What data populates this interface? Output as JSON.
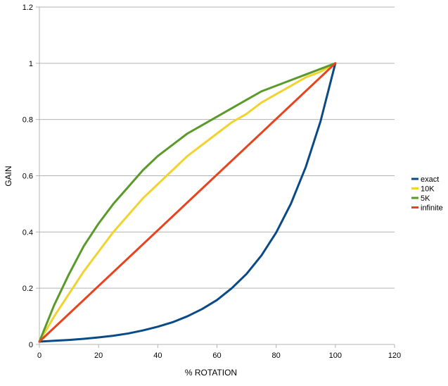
{
  "chart_data": {
    "type": "line",
    "title": "",
    "xlabel": "% ROTATION",
    "ylabel": "GAIN",
    "xlim": [
      0,
      120
    ],
    "ylim": [
      0,
      1.2
    ],
    "xticks": [
      0,
      20,
      40,
      60,
      80,
      100,
      120
    ],
    "yticks": [
      0,
      0.2,
      0.4,
      0.6,
      0.8,
      1,
      1.2
    ],
    "grid": "horizontal",
    "legend": "right",
    "series": [
      {
        "name": "exact",
        "color": "#0a4a86",
        "x": [
          0,
          5,
          10,
          15,
          20,
          25,
          30,
          35,
          40,
          45,
          50,
          55,
          60,
          65,
          70,
          75,
          80,
          85,
          90,
          95,
          100
        ],
        "y": [
          0.01,
          0.013,
          0.016,
          0.02,
          0.025,
          0.031,
          0.039,
          0.05,
          0.063,
          0.079,
          0.1,
          0.126,
          0.158,
          0.2,
          0.251,
          0.316,
          0.398,
          0.501,
          0.631,
          0.794,
          1.0
        ]
      },
      {
        "name": "10K",
        "color": "#f2d22e",
        "x": [
          0,
          5,
          10,
          15,
          20,
          25,
          30,
          35,
          40,
          45,
          50,
          55,
          60,
          65,
          70,
          75,
          80,
          85,
          90,
          95,
          100
        ],
        "y": [
          0.01,
          0.1,
          0.18,
          0.26,
          0.33,
          0.4,
          0.46,
          0.52,
          0.57,
          0.62,
          0.67,
          0.71,
          0.75,
          0.79,
          0.82,
          0.86,
          0.89,
          0.92,
          0.95,
          0.97,
          1.0
        ]
      },
      {
        "name": "5K",
        "color": "#5a9a2a",
        "x": [
          0,
          5,
          10,
          15,
          20,
          25,
          30,
          35,
          40,
          45,
          50,
          55,
          60,
          65,
          70,
          75,
          80,
          85,
          90,
          95,
          100
        ],
        "y": [
          0.01,
          0.14,
          0.25,
          0.35,
          0.43,
          0.5,
          0.56,
          0.62,
          0.67,
          0.71,
          0.75,
          0.78,
          0.81,
          0.84,
          0.87,
          0.9,
          0.92,
          0.94,
          0.96,
          0.98,
          1.0
        ]
      },
      {
        "name": "infinite",
        "color": "#e8431e",
        "x": [
          0,
          100
        ],
        "y": [
          0.01,
          1.0
        ]
      }
    ]
  }
}
